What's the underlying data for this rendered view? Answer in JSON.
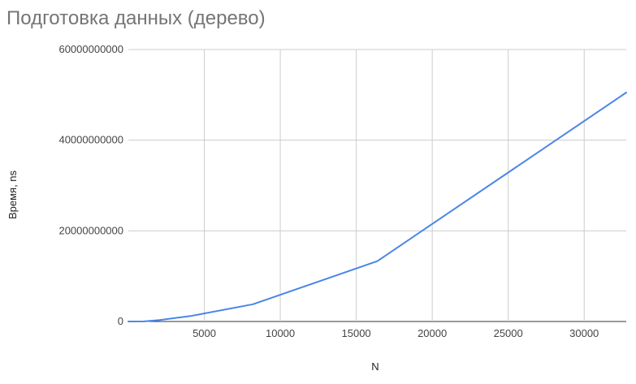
{
  "chart_data": {
    "type": "line",
    "title": "Подготовка данных (дерево)",
    "xlabel": "N",
    "ylabel": "Время, ns",
    "xlim": [
      0,
      32768
    ],
    "ylim": [
      0,
      60000000000
    ],
    "x_ticks": [
      5000,
      10000,
      15000,
      20000,
      25000,
      30000
    ],
    "x_tick_labels": [
      "5000",
      "10000",
      "15000",
      "20000",
      "25000",
      "30000"
    ],
    "y_ticks": [
      0,
      20000000000,
      40000000000,
      60000000000
    ],
    "y_tick_labels": [
      "0",
      "20000000000",
      "40000000000",
      "60000000000"
    ],
    "grid": true,
    "legend": "none",
    "series": [
      {
        "color": "#4a86e8",
        "x": [
          0,
          1024,
          2048,
          4096,
          8192,
          16384,
          32768
        ],
        "y": [
          0,
          20000000,
          300000000,
          1200000000,
          3800000000,
          13300000000,
          50500000000
        ]
      }
    ]
  }
}
